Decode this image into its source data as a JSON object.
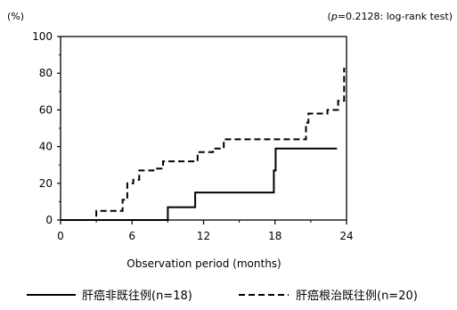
{
  "chart_data": {
    "type": "line",
    "step": true,
    "y_unit_label": "(%)",
    "annotation": {
      "p_letter": "p",
      "rest": "=0.2128: log-rank test",
      "open": "(",
      "close": ")"
    },
    "xlabel": "Observation period (months)",
    "ylabel": "",
    "xlim": [
      0,
      24
    ],
    "ylim": [
      0,
      100
    ],
    "x_ticks": [
      0,
      6,
      12,
      18,
      24
    ],
    "y_ticks": [
      0,
      20,
      40,
      60,
      80,
      100
    ],
    "grid": false,
    "legend_position": "bottom",
    "series": [
      {
        "name": "肝癌非既往例(n=18)",
        "style": "solid",
        "x": [
          0,
          9,
          9,
          11.3,
          11.3,
          17.9,
          17.9,
          18.05,
          18.05,
          23.2
        ],
        "y": [
          0,
          0,
          7,
          7,
          15,
          15,
          27,
          27,
          39,
          39
        ]
      },
      {
        "name": "肝癌根治既往例(n=20)",
        "style": "dashed",
        "x": [
          0,
          3,
          3,
          5.2,
          5.2,
          5.6,
          5.6,
          6.1,
          6.1,
          6.6,
          6.6,
          7.8,
          7.8,
          8.6,
          8.6,
          11.5,
          11.5,
          12.8,
          12.8,
          13.7,
          13.7,
          20.6,
          20.6,
          20.8,
          20.8,
          22.4,
          22.4,
          23.3,
          23.3,
          23.8,
          23.8
        ],
        "y": [
          0,
          0,
          5,
          5,
          11,
          11,
          20,
          20,
          22,
          22,
          27,
          27,
          28,
          28,
          32,
          32,
          37,
          37,
          39,
          39,
          44,
          44,
          53,
          53,
          58,
          58,
          60,
          60,
          65,
          65,
          83
        ]
      }
    ]
  }
}
